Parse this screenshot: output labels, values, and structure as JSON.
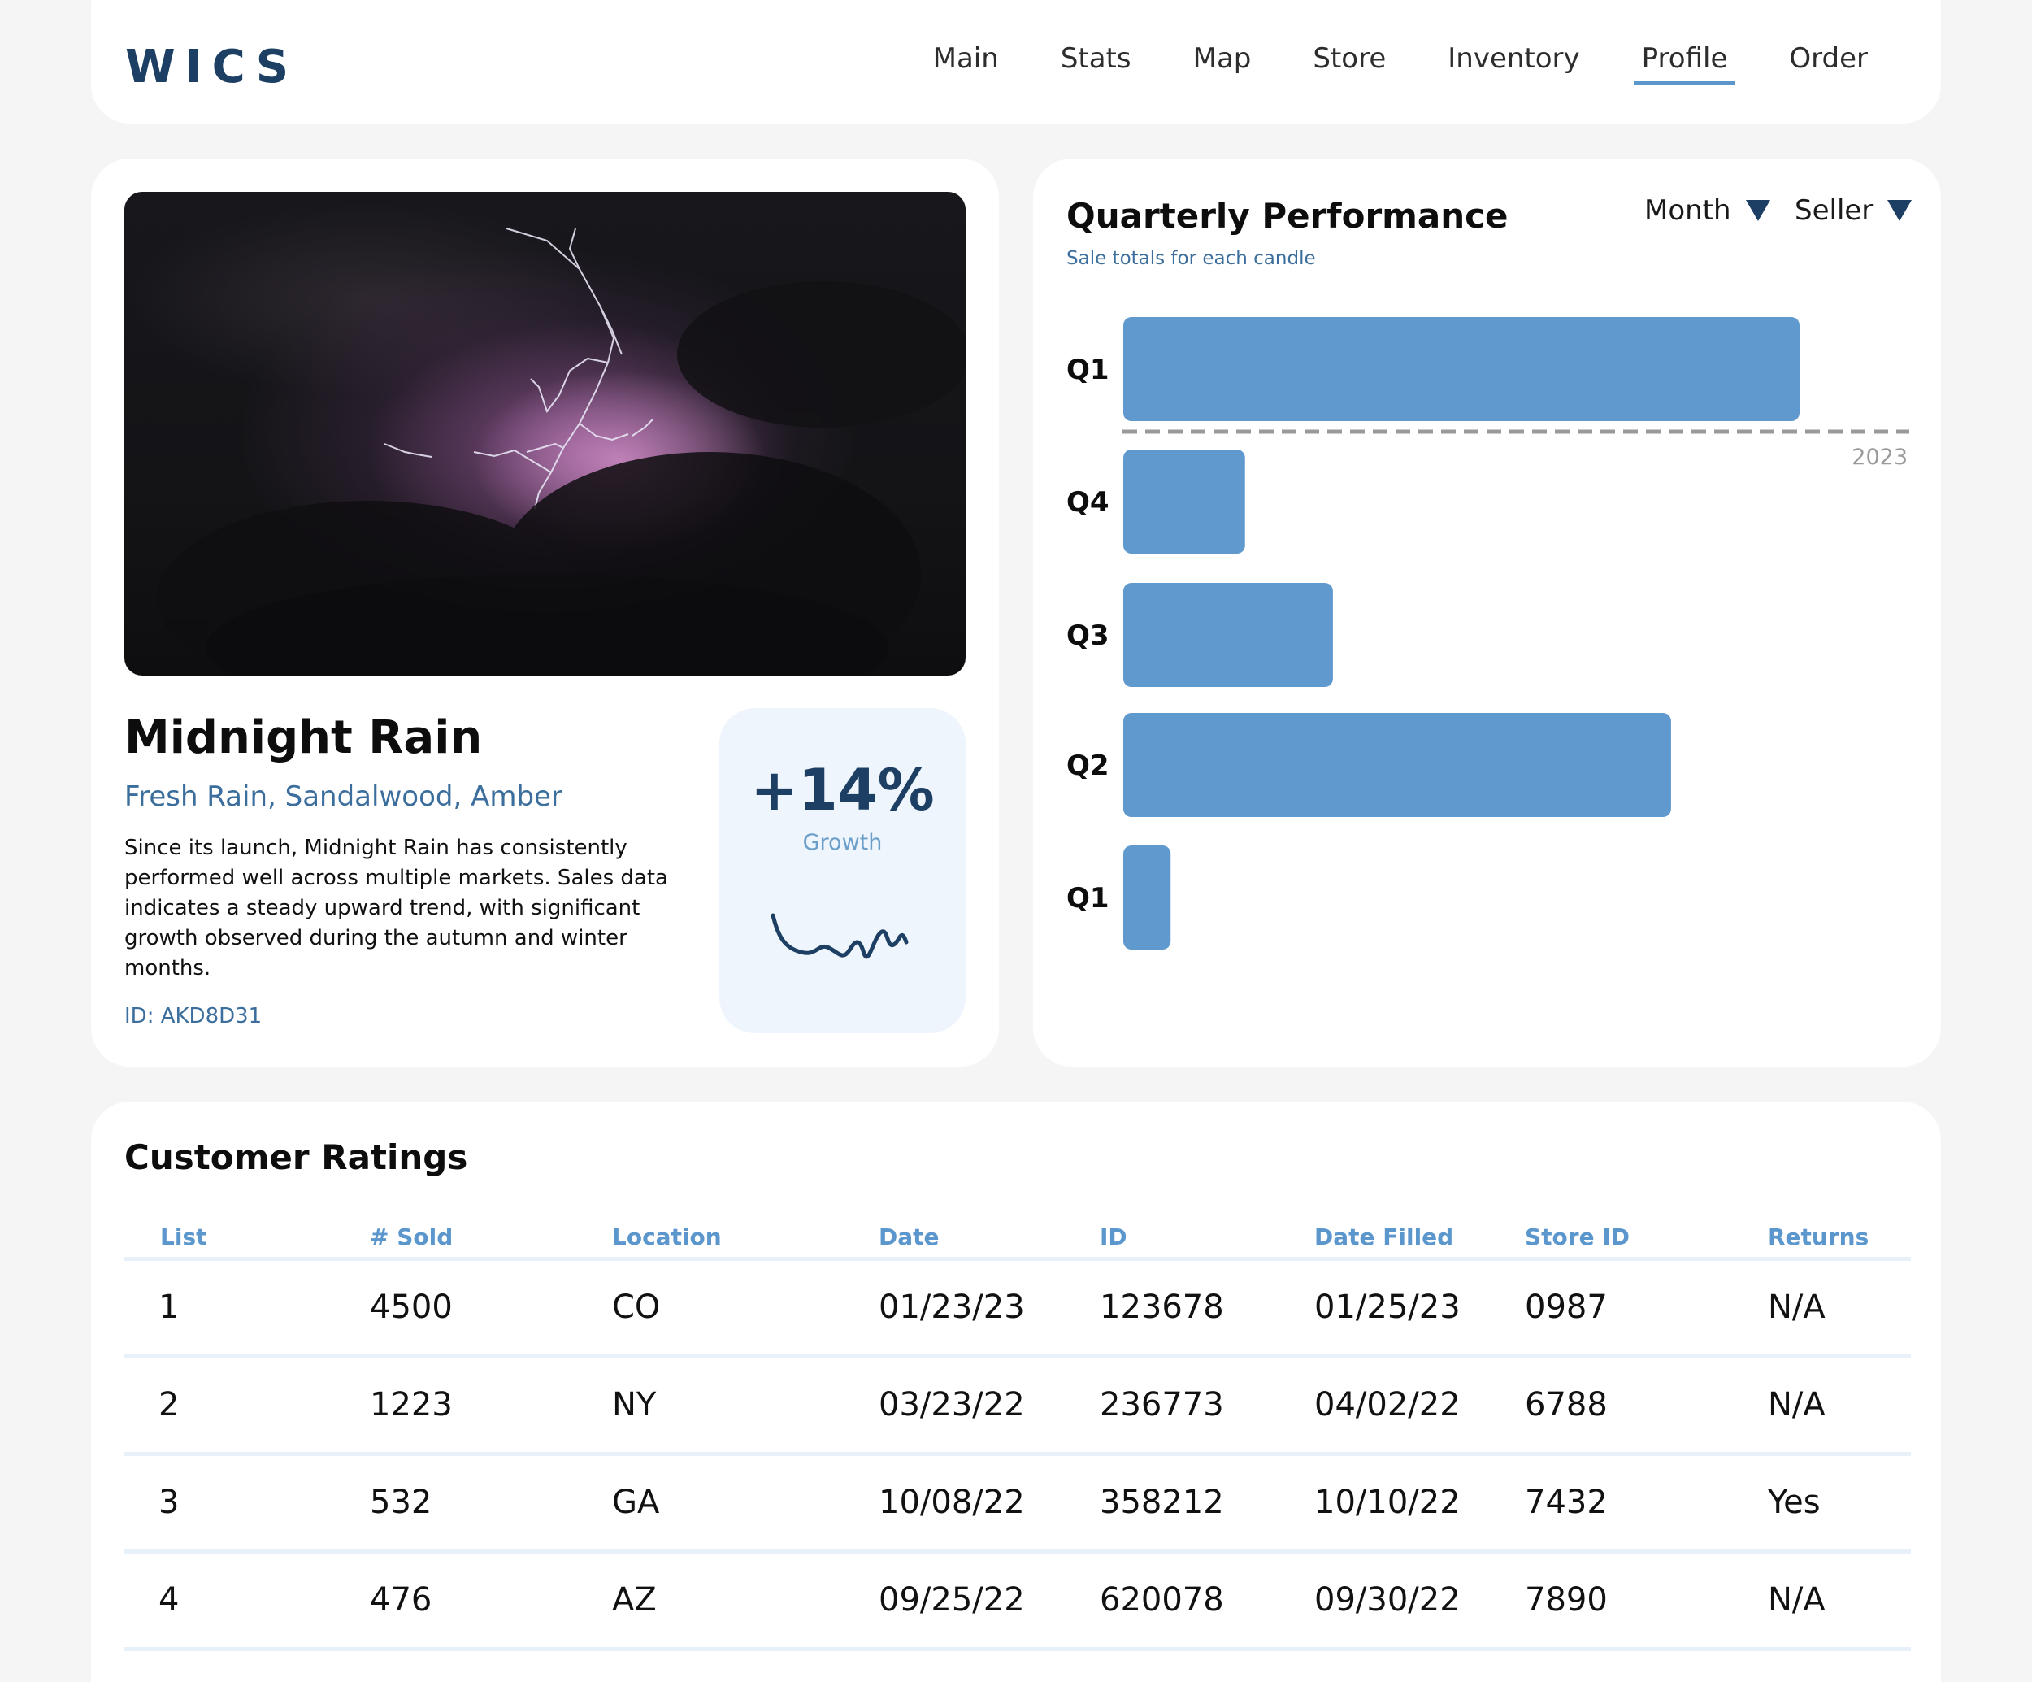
{
  "header": {
    "logo": "WICS",
    "nav": [
      {
        "label": "Main",
        "active": false
      },
      {
        "label": "Stats",
        "active": false
      },
      {
        "label": "Map",
        "active": false
      },
      {
        "label": "Store",
        "active": false
      },
      {
        "label": "Inventory",
        "active": false
      },
      {
        "label": "Profile",
        "active": true
      },
      {
        "label": "Order",
        "active": false
      }
    ]
  },
  "product": {
    "title": "Midnight Rain",
    "notes": "Fresh Rain, Sandalwood, Amber",
    "description": "Since its launch, Midnight Rain has consistently performed well across multiple markets. Sales data indicates a steady upward trend, with significant growth observed during the autumn and winter months.",
    "id_label": "ID: AKD8D31",
    "growth_value": "+14%",
    "growth_label": "Growth"
  },
  "chart": {
    "title": "Quarterly Performance",
    "subtitle": "Sale totals for each candle",
    "filters": [
      {
        "label": "Month"
      },
      {
        "label": "Seller"
      }
    ],
    "year_marker": "2023"
  },
  "chart_data": {
    "type": "bar",
    "orientation": "horizontal",
    "categories": [
      "Q1",
      "Q4",
      "Q3",
      "Q2",
      "Q1"
    ],
    "values": [
      100,
      18,
      31,
      81,
      7
    ],
    "separator_after_index": 0,
    "separator_label": "2023",
    "color": "#5f99cd",
    "xlim": [
      0,
      100
    ],
    "grid": false,
    "title": "Quarterly Performance",
    "subtitle": "Sale totals for each candle"
  },
  "ratings": {
    "title": "Customer Ratings",
    "columns": [
      "List",
      "# Sold",
      "Location",
      "Date",
      "ID",
      "Date Filled",
      "Store ID",
      "Returns"
    ],
    "rows": [
      [
        "1",
        "4500",
        "CO",
        "01/23/23",
        "123678",
        "01/25/23",
        "0987",
        "N/A"
      ],
      [
        "2",
        "1223",
        "NY",
        "03/23/22",
        "236773",
        "04/02/22",
        "6788",
        "N/A"
      ],
      [
        "3",
        "532",
        "GA",
        "10/08/22",
        "358212",
        "10/10/22",
        "7432",
        "Yes"
      ],
      [
        "4",
        "476",
        "AZ",
        "09/25/22",
        "620078",
        "09/30/22",
        "7890",
        "N/A"
      ]
    ]
  },
  "colors": {
    "brand": "#1d3f63",
    "accent": "#5b97cc",
    "bar": "#5f99cd",
    "growth_bg": "#eef5fc"
  }
}
